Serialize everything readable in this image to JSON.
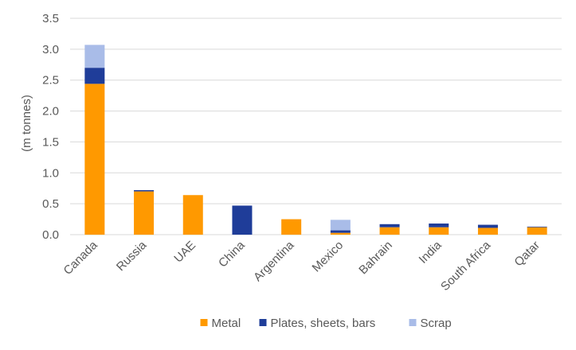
{
  "chart_data": {
    "type": "bar",
    "stacked": true,
    "ylabel": "(m tonnes)",
    "ylim": [
      0,
      3.5
    ],
    "yticks": [
      "0.0",
      "0.5",
      "1.0",
      "1.5",
      "2.0",
      "2.5",
      "3.0",
      "3.5"
    ],
    "grid": true,
    "legend_position": "bottom",
    "categories": [
      "Canada",
      "Russia",
      "UAE",
      "China",
      "Argentina",
      "Mexico",
      "Bahrain",
      "India",
      "South Africa",
      "Qatar"
    ],
    "series": [
      {
        "name": "Metal",
        "color": "#ff9900",
        "values": [
          2.44,
          0.7,
          0.64,
          0.0,
          0.25,
          0.03,
          0.12,
          0.12,
          0.11,
          0.12
        ]
      },
      {
        "name": "Plates, sheets, bars",
        "color": "#1f3d99",
        "values": [
          0.26,
          0.02,
          0.0,
          0.47,
          0.0,
          0.04,
          0.05,
          0.06,
          0.05,
          0.01
        ]
      },
      {
        "name": "Scrap",
        "color": "#a9bce8",
        "values": [
          0.37,
          0.0,
          0.0,
          0.0,
          0.0,
          0.17,
          0.0,
          0.0,
          0.0,
          0.0
        ]
      }
    ]
  }
}
